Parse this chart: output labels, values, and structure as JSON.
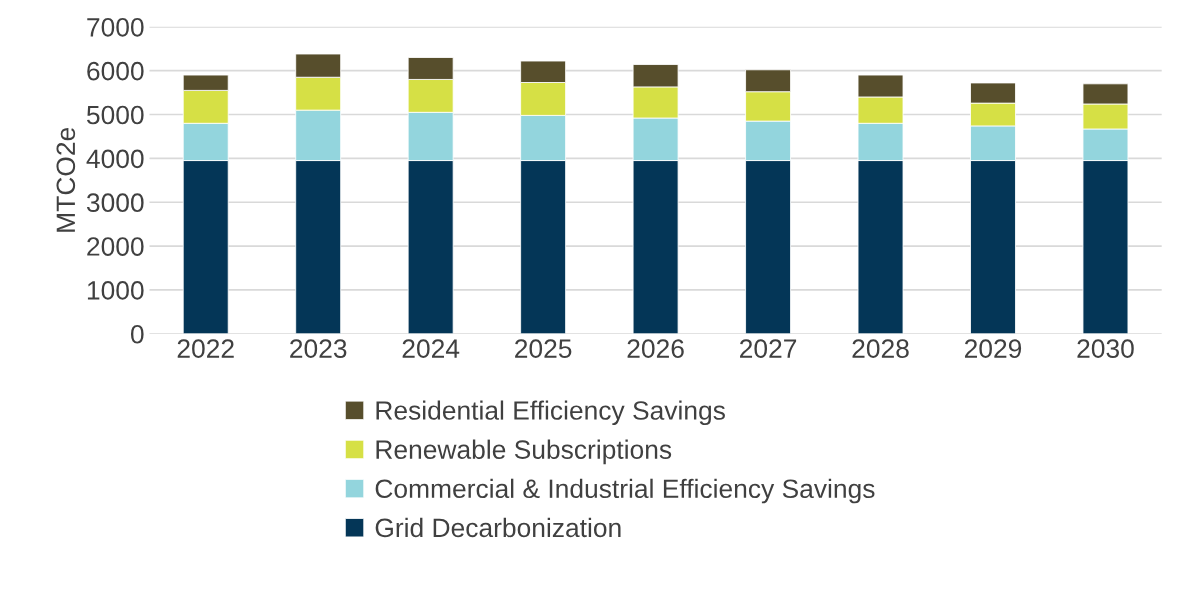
{
  "chart_data": {
    "type": "bar",
    "stacked": true,
    "ylabel": "MTCO2e",
    "categories": [
      "2022",
      "2023",
      "2024",
      "2025",
      "2026",
      "2027",
      "2028",
      "2029",
      "2030"
    ],
    "series": [
      {
        "name": "Grid Decarbonization",
        "color": "#043657",
        "values": [
          3950,
          3950,
          3950,
          3950,
          3950,
          3950,
          3950,
          3950,
          3950
        ]
      },
      {
        "name": "Commercial & Industrial Efficiency Savings",
        "color": "#93d5dd",
        "values": [
          850,
          1150,
          1100,
          1030,
          970,
          900,
          850,
          790,
          720
        ]
      },
      {
        "name": "Renewable Subscriptions",
        "color": "#d6e045",
        "values": [
          750,
          750,
          750,
          750,
          710,
          670,
          600,
          520,
          570
        ]
      },
      {
        "name": "Residential Efficiency Savings",
        "color": "#574e2c",
        "values": [
          350,
          530,
          500,
          490,
          510,
          500,
          500,
          460,
          460
        ]
      }
    ],
    "ylim": [
      0,
      7000
    ],
    "yticks": [
      0,
      1000,
      2000,
      3000,
      4000,
      5000,
      6000,
      7000
    ],
    "grid": "y",
    "legend": "bottom"
  }
}
